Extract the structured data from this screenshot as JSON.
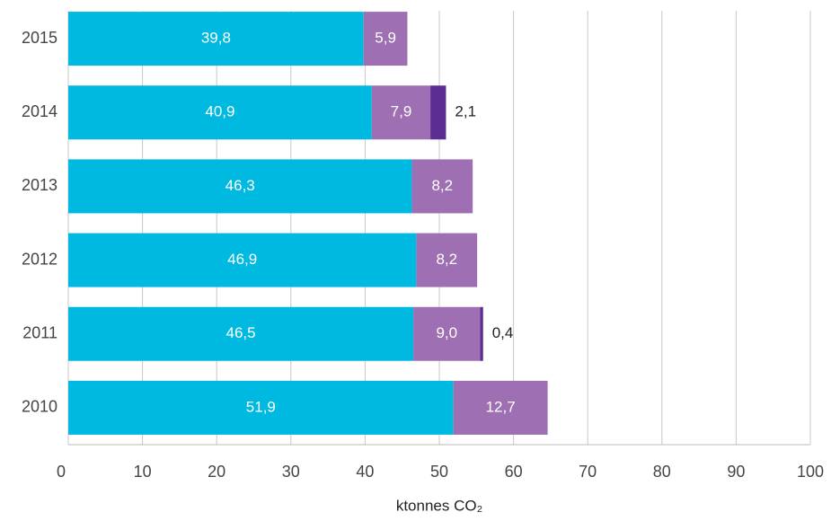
{
  "chart_data": {
    "type": "stacked_barh",
    "x_label": "ktonnes CO₂",
    "categories": [
      "2015",
      "2014",
      "2013",
      "2012",
      "2011",
      "2010"
    ],
    "series": [
      {
        "color": "#00b9e0",
        "values": [
          39.8,
          40.9,
          46.3,
          46.9,
          46.5,
          51.9
        ],
        "value_labels": [
          "39,8",
          "40,9",
          "46,3",
          "46,9",
          "46,5",
          "51,9"
        ]
      },
      {
        "color": "#9e6fb2",
        "values": [
          5.9,
          7.9,
          8.2,
          8.2,
          9.0,
          12.7
        ],
        "value_labels": [
          "5,9",
          "7,9",
          "8,2",
          "8,2",
          "9,0",
          "12,7"
        ]
      },
      {
        "color": "#5b2d91",
        "values": [
          null,
          2.1,
          null,
          null,
          0.4,
          null
        ],
        "value_labels": [
          null,
          "2,1",
          null,
          null,
          "0,4",
          null
        ]
      }
    ],
    "xlim": [
      0,
      100
    ],
    "xticks": [
      0,
      10,
      20,
      30,
      40,
      50,
      60,
      70,
      80,
      90,
      100
    ],
    "grid": true
  }
}
